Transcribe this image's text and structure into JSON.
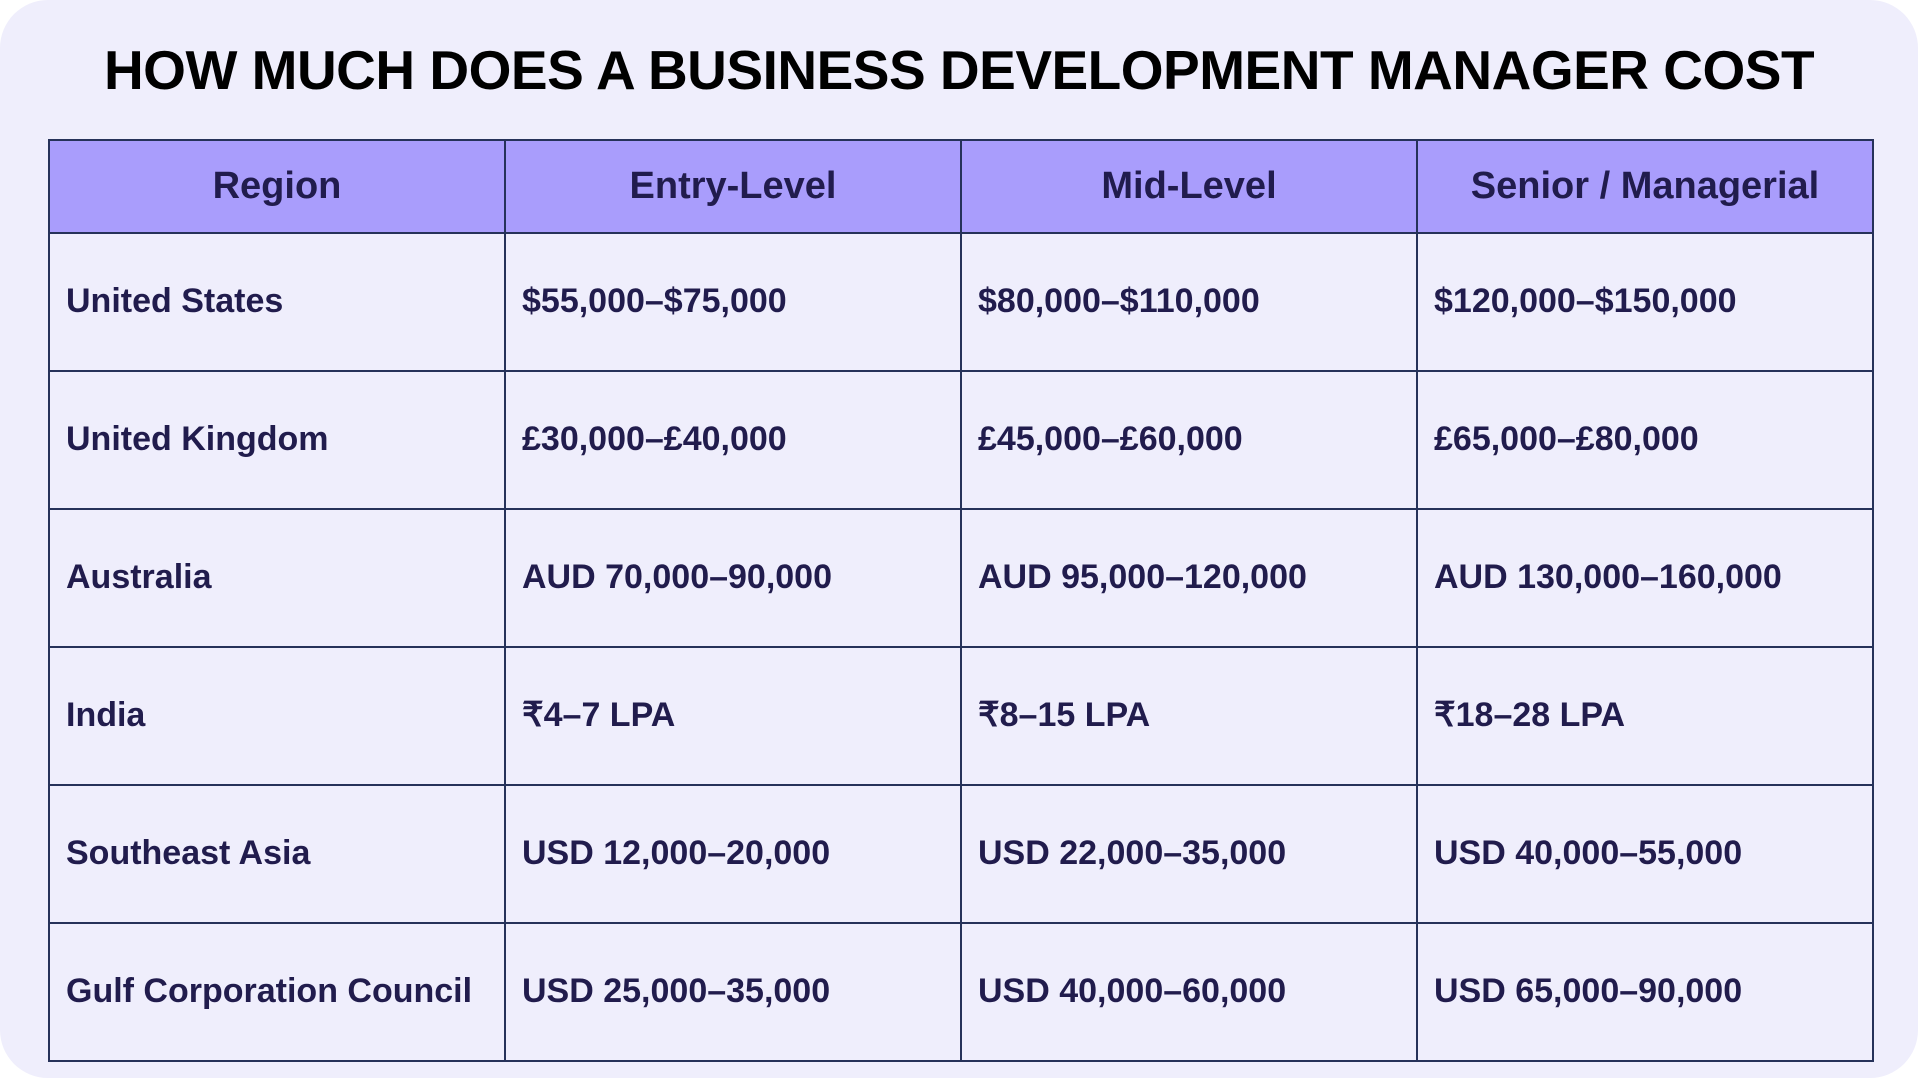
{
  "title": "HOW MUCH DOES A BUSINESS DEVELOPMENT MANAGER COST",
  "colors": {
    "background": "#efeefc",
    "header_fill": "#a99dfc",
    "border": "#26325a",
    "text": "#211c4d"
  },
  "table": {
    "headers": [
      "Region",
      "Entry-Level",
      "Mid-Level",
      "Senior / Managerial"
    ],
    "rows": [
      [
        "United States",
        "$55,000–$75,000",
        "$80,000–$110,000",
        "$120,000–$150,000"
      ],
      [
        "United Kingdom",
        "£30,000–£40,000",
        "£45,000–£60,000",
        "£65,000–£80,000"
      ],
      [
        "Australia",
        "AUD 70,000–90,000",
        "AUD 95,000–120,000",
        "AUD 130,000–160,000"
      ],
      [
        "India",
        "₹4–7 LPA",
        "₹8–15 LPA",
        "₹18–28 LPA"
      ],
      [
        "Southeast Asia",
        "USD 12,000–20,000",
        "USD 22,000–35,000",
        "USD 40,000–55,000"
      ],
      [
        "Gulf Corporation Council",
        "USD 25,000–35,000",
        "USD 40,000–60,000",
        "USD 65,000–90,000"
      ]
    ]
  }
}
